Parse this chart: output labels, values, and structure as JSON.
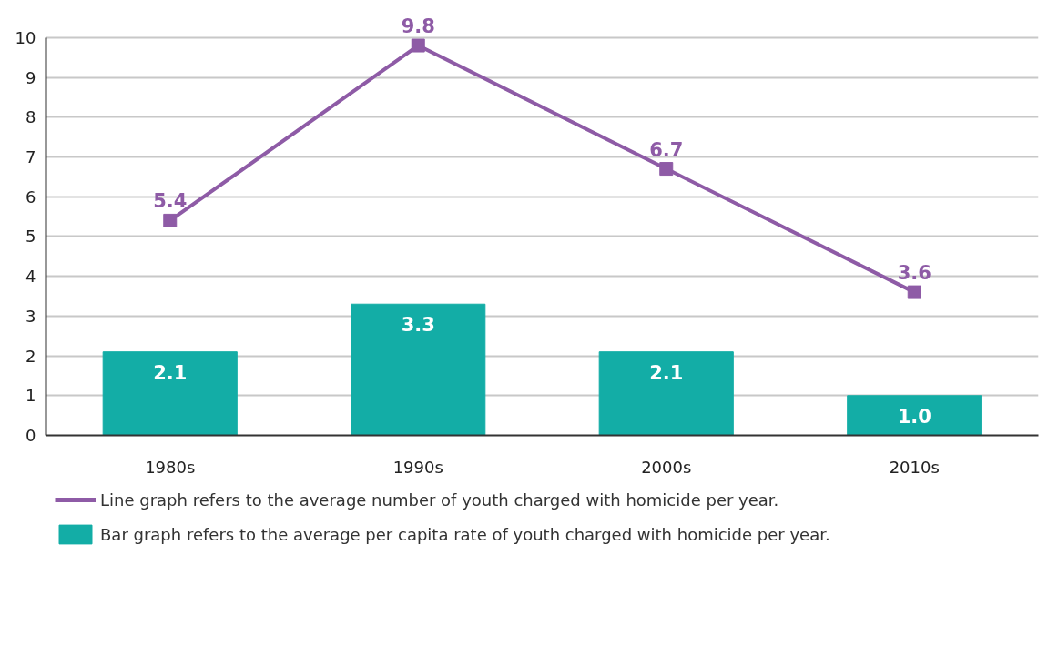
{
  "chart_data": {
    "type": "bar",
    "categories": [
      "1980s",
      "1990s",
      "2000s",
      "2010s"
    ],
    "series": [
      {
        "name": "Bar graph refers to the average per capita rate of youth charged with homicide per year.",
        "color": "#13ada6",
        "values": [
          2.1,
          3.3,
          2.1,
          1.0
        ],
        "value_labels": [
          "2.1",
          "3.3",
          "2.1",
          "1.0"
        ]
      },
      {
        "name": "Line graph refers to the average number of youth charged with homicide per year.",
        "type": "line",
        "color": "#8e5ba6",
        "values": [
          5.4,
          9.8,
          6.7,
          3.6
        ],
        "value_labels": [
          "5.4",
          "9.8",
          "6.7",
          "3.6"
        ],
        "marker": "square"
      }
    ],
    "ylim": [
      0,
      10
    ],
    "yticks": [
      0,
      1,
      2,
      3,
      4,
      5,
      6,
      7,
      8,
      9,
      10
    ],
    "grid": "y",
    "legend": "bottom"
  }
}
